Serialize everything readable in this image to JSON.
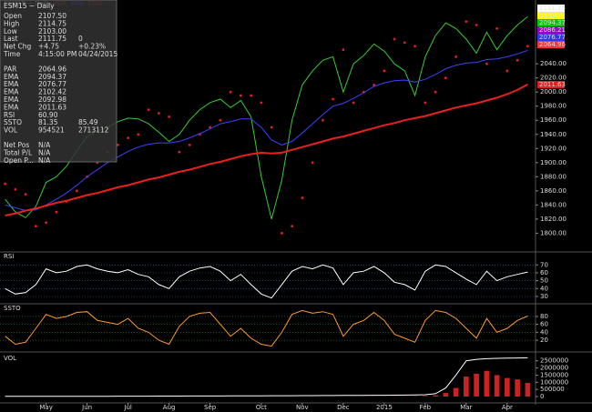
{
  "chart_data": [
    {
      "type": "line",
      "title": "ESM15 ~ Daily",
      "ylim": [
        1776,
        2124
      ],
      "yticks": [
        {
          "value": 1800,
          "label": "1800.00"
        },
        {
          "value": 1820,
          "label": "1820.00"
        },
        {
          "value": 1840,
          "label": "1840.00"
        },
        {
          "value": 1860,
          "label": "1860.00"
        },
        {
          "value": 1880,
          "label": "1880.00"
        },
        {
          "value": 1900,
          "label": "1900.00"
        },
        {
          "value": 1920,
          "label": "1920.00"
        },
        {
          "value": 1940,
          "label": "1940.00"
        },
        {
          "value": 1960,
          "label": "1960.00"
        },
        {
          "value": 1980,
          "label": "1980.00"
        },
        {
          "value": 2000,
          "label": "2000.00"
        },
        {
          "value": 2020,
          "label": "2020.00"
        },
        {
          "value": 2040,
          "label": "2040.00"
        }
      ],
      "series": [
        {
          "color": "#33cc33",
          "style": "line",
          "values": [
            1848,
            1830,
            1822,
            1838,
            1872,
            1880,
            1895,
            1917,
            1937,
            1945,
            1950,
            1958,
            1963,
            1962,
            1955,
            1943,
            1930,
            1940,
            1960,
            1975,
            1985,
            1990,
            1978,
            1988,
            1965,
            1880,
            1820,
            1875,
            1960,
            2010,
            2030,
            2045,
            2050,
            2000,
            2040,
            2052,
            2068,
            2058,
            2040,
            2030,
            1995,
            2050,
            2080,
            2098,
            2090,
            2075,
            2055,
            2085,
            2060,
            2080,
            2095,
            2107
          ]
        },
        {
          "name": "PAR",
          "color": "#e02020",
          "style": "dots",
          "values": [
            1870,
            1862,
            1855,
            1810,
            1815,
            1830,
            1845,
            1860,
            1880,
            1900,
            1915,
            1925,
            1935,
            1940,
            1975,
            1970,
            1965,
            1915,
            1925,
            1940,
            1950,
            1960,
            2000,
            1995,
            1995,
            1985,
            1950,
            1800,
            1810,
            1850,
            1900,
            1960,
            1990,
            2060,
            1985,
            2000,
            2010,
            2030,
            2075,
            2070,
            2065,
            1985,
            2000,
            2020,
            2050,
            2100,
            2095,
            2040,
            2090,
            2030,
            2045,
            2065
          ]
        },
        {
          "name": "EMA",
          "color": "#4040ff",
          "style": "line",
          "values": [
            1840,
            1836,
            1832,
            1833,
            1840,
            1848,
            1857,
            1868,
            1880,
            1890,
            1900,
            1908,
            1916,
            1922,
            1926,
            1928,
            1928,
            1930,
            1935,
            1941,
            1948,
            1955,
            1958,
            1962,
            1962,
            1950,
            1932,
            1925,
            1930,
            1942,
            1955,
            1968,
            1980,
            1984,
            1991,
            1999,
            2008,
            2013,
            2016,
            2017,
            2014,
            2018,
            2025,
            2033,
            2038,
            2041,
            2042,
            2046,
            2047,
            2050,
            2054,
            2059
          ]
        },
        {
          "name": "EMA",
          "color": "#e82020",
          "style": "line",
          "width": 2,
          "values": [
            1825,
            1828,
            1832,
            1835,
            1839,
            1843,
            1846,
            1850,
            1854,
            1857,
            1861,
            1865,
            1868,
            1872,
            1876,
            1879,
            1883,
            1887,
            1890,
            1894,
            1898,
            1901,
            1905,
            1909,
            1912,
            1914,
            1913,
            1914,
            1918,
            1922,
            1926,
            1930,
            1934,
            1937,
            1941,
            1945,
            1949,
            1953,
            1956,
            1960,
            1963,
            1966,
            1970,
            1974,
            1978,
            1981,
            1984,
            1988,
            1992,
            1997,
            2003,
            2011
          ]
        }
      ],
      "price_tags": [
        {
          "text": "2111.75",
          "bg": "#ffffff",
          "fg": "#000"
        },
        {
          "text": "2102.42",
          "bg": "#ffff00",
          "fg": "#000"
        },
        {
          "text": "2094.37",
          "bg": "#00cc00",
          "fg": "#000"
        },
        {
          "text": "2086.21",
          "bg": "#9900cc",
          "fg": "#fff"
        },
        {
          "text": "2076.77",
          "bg": "#3333ff",
          "fg": "#fff"
        },
        {
          "text": "2064.96",
          "bg": "#ff3333",
          "fg": "#000"
        },
        {
          "text": "2011.63",
          "bg": "#e02020",
          "fg": "#000"
        }
      ],
      "info_box": {
        "groups": [
          [
            {
              "cells": [
                "Open",
                "2107.50"
              ],
              "color": "#fff"
            },
            {
              "cells": [
                "High",
                "2114.75"
              ],
              "color": "#fff"
            },
            {
              "cells": [
                "Low",
                "2103.00"
              ],
              "color": "#fff"
            },
            {
              "cells": [
                "Last",
                "2111.75",
                "0"
              ],
              "color": "#fff"
            },
            {
              "cells": [
                "Net Chg",
                "+4.75",
                "+0.23%"
              ],
              "color": "#33ff33"
            },
            {
              "cells": [
                "Time",
                "4:15:00 PM",
                "04/24/2015"
              ],
              "color": "#fff"
            }
          ],
          [
            {
              "cells": [
                "PAR",
                "2064.96"
              ],
              "color": "#ff3333"
            },
            {
              "cells": [
                "EMA",
                "2094.37"
              ],
              "color": "#3366ff"
            },
            {
              "cells": [
                "EMA",
                "2076.77"
              ],
              "color": "#aa33ff"
            },
            {
              "cells": [
                "EMA",
                "2102.42"
              ],
              "color": "#ffff33"
            },
            {
              "cells": [
                "EMA",
                "2092.98"
              ],
              "color": "#33ff33"
            },
            {
              "cells": [
                "EMA",
                "2011.63"
              ],
              "color": "#ff3333"
            },
            {
              "cells": [
                "RSI",
                "60.90"
              ],
              "color": "#fff"
            },
            {
              "cells": [
                "SSTO",
                "81.35",
                "85.49"
              ],
              "color": "#ff9933"
            },
            {
              "cells": [
                "VOL",
                "954521",
                "2713112"
              ],
              "color": "#33ff33"
            }
          ],
          [
            {
              "cells": [
                "Net Pos",
                "N/A"
              ],
              "color": "#fff"
            },
            {
              "cells": [
                "Total P/L",
                "N/A"
              ],
              "color": "#fff"
            },
            {
              "cells": [
                "Open P...",
                "N/A"
              ],
              "color": "#fff"
            }
          ]
        ]
      }
    },
    {
      "type": "line",
      "title": "RSI",
      "ylim": [
        23,
        83
      ],
      "yticks": [
        30,
        40,
        50,
        60,
        70
      ],
      "series": [
        {
          "color": "#ffffff",
          "style": "line",
          "values": [
            40,
            33,
            35,
            45,
            65,
            60,
            62,
            68,
            70,
            65,
            62,
            60,
            64,
            58,
            55,
            45,
            40,
            55,
            62,
            66,
            68,
            62,
            50,
            58,
            45,
            33,
            28,
            45,
            62,
            68,
            65,
            70,
            66,
            45,
            60,
            62,
            68,
            60,
            48,
            45,
            38,
            62,
            70,
            68,
            60,
            52,
            45,
            62,
            50,
            55,
            58,
            61
          ]
        }
      ]
    },
    {
      "type": "line",
      "title": "SSTO",
      "ylim": [
        -5,
        105
      ],
      "yticks": [
        20,
        40,
        60,
        80
      ],
      "series": [
        {
          "color": "#ff9933",
          "style": "line",
          "values": [
            30,
            10,
            15,
            50,
            85,
            75,
            80,
            90,
            92,
            70,
            65,
            60,
            75,
            50,
            40,
            20,
            10,
            55,
            80,
            88,
            90,
            60,
            30,
            50,
            25,
            10,
            5,
            40,
            85,
            95,
            88,
            92,
            85,
            30,
            60,
            70,
            90,
            70,
            35,
            25,
            15,
            70,
            95,
            90,
            75,
            50,
            25,
            75,
            40,
            50,
            70,
            81
          ]
        }
      ]
    },
    {
      "type": "bar",
      "title": "VOL",
      "ylim": [
        0,
        2800000
      ],
      "yticks": [
        0,
        500000,
        1000000,
        1500000,
        2000000,
        2500000
      ],
      "categories": [
        null,
        null,
        null,
        null,
        "May",
        null,
        null,
        null,
        "Jun",
        null,
        null,
        null,
        "Jul",
        null,
        null,
        null,
        "Aug",
        null,
        null,
        null,
        "Sep",
        null,
        null,
        null,
        null,
        "Oct",
        null,
        null,
        null,
        "Nov",
        null,
        null,
        null,
        "Dec",
        null,
        null,
        null,
        "2015",
        null,
        null,
        null,
        "Feb",
        null,
        null,
        null,
        "Mar",
        null,
        null,
        null,
        "Apr",
        null,
        null
      ],
      "series": [
        {
          "color": "#cc2222",
          "style": "bars",
          "values": [
            3000,
            2000,
            2500,
            3000,
            2000,
            2500,
            3000,
            2000,
            3500,
            2500,
            3000,
            2500,
            3000,
            2000,
            3500,
            3000,
            2500,
            3000,
            2000,
            3500,
            3000,
            4000,
            3000,
            3500,
            4000,
            6000,
            8000,
            5000,
            4000,
            4500,
            5000,
            4000,
            3500,
            5000,
            5500,
            6000,
            7000,
            8000,
            10000,
            15000,
            20000,
            40000,
            90000,
            250000,
            600000,
            1400000,
            1600000,
            1800000,
            1500000,
            1300000,
            1200000,
            954521
          ]
        },
        {
          "color": "#ffffff",
          "style": "line",
          "values": [
            10000,
            10000,
            12000,
            12000,
            14000,
            15000,
            16000,
            18000,
            20000,
            20000,
            22000,
            24000,
            25000,
            26000,
            28000,
            30000,
            32000,
            34000,
            35000,
            36000,
            38000,
            40000,
            42000,
            44000,
            46000,
            50000,
            55000,
            58000,
            60000,
            62000,
            65000,
            68000,
            70000,
            74000,
            78000,
            82000,
            86000,
            90000,
            95000,
            100000,
            110000,
            130000,
            200000,
            600000,
            1500000,
            2500000,
            2600000,
            2650000,
            2670000,
            2690000,
            2700000,
            2713112
          ]
        }
      ]
    }
  ]
}
